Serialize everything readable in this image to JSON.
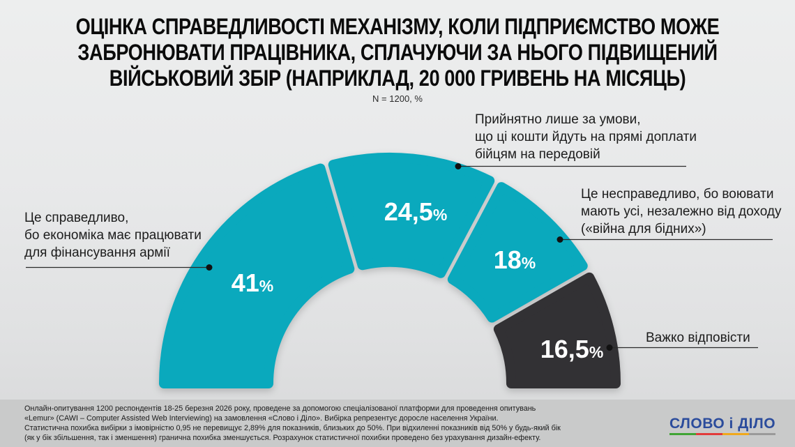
{
  "title": {
    "text": "ОЦІНКА СПРАВЕДЛИВОСТІ МЕХАНІЗМУ, КОЛИ ПІДПРИЄМСТВО МОЖЕ\nЗАБРОНЮВАТИ ПРАЦІВНИКА, СПЛАЧУЮЧИ ЗА НЬОГО ПІДВИЩЕНИЙ\nВІЙСЬКОВИЙ ЗБІР (НАПРИКЛАД, 20 000 ГРИВЕНЬ НА МІСЯЦЬ)"
  },
  "subtitle": "N = 1200, %",
  "chart_data": {
    "type": "pie",
    "variant": "semicircle-donut",
    "title": "ОЦІНКА СПРАВЕДЛИВОСТІ МЕХАНІЗМУ, КОЛИ ПІДПРИЄМСТВО МОЖЕ ЗАБРОНЮВАТИ ПРАЦІВНИКА, СПЛАЧУЮЧИ ЗА НЬОГО ПІДВИЩЕНИЙ ВІЙСЬКОВИЙ ЗБІР (НАПРИКЛАД, 20 000 ГРИВЕНЬ НА МІСЯЦЬ)",
    "sample_note": "N = 1200, %",
    "unit": "%",
    "start_angle_deg": 180,
    "end_angle_deg": 0,
    "value_label_color": "#ffffff",
    "segments": [
      {
        "label": "Це справедливо, бо економіка має працювати для фінансування армії",
        "value": 41,
        "display": "41",
        "color": "#0aa9bd"
      },
      {
        "label": "Прийнятно лише за умови, що ці кошти йдуть на прямі доплати бійцям на передовій",
        "value": 24.5,
        "display": "24,5",
        "color": "#0aa9bd"
      },
      {
        "label": "Це несправедливо, бо воювати мають усі, незалежно від доходу («війна для бідних»)",
        "value": 18,
        "display": "18",
        "color": "#0aa9bd"
      },
      {
        "label": "Важко відповісти",
        "value": 16.5,
        "display": "16,5",
        "color": "#323134"
      }
    ]
  },
  "callouts": [
    {
      "text": "Це справедливо,\nбо економіка має працювати\nдля фінансування армії"
    },
    {
      "text": "Прийнятно лише за умови,\nщо ці кошти йдуть на прямі доплати\nбійцям на передовій"
    },
    {
      "text": "Це несправедливо, бо воювати\nмають усі, незалежно від доходу\n(«війна для бідних»)"
    },
    {
      "text": "Важко відповісти"
    }
  ],
  "footer": {
    "methodology": "Онлайн-опитування 1200 респондентів 18-25 березня 2026 року, проведене за допомогою спеціалізованої платформи для проведення опитувань\n«Lemur» (CAWI – Computer Assisted Web Interviewing) на замовлення «Слово і Діло». Вибірка репрезентує доросле населення України.\nСтатистична похибка вибірки з імовірністю 0,95 не перевищує 2,89% для показників, близьких до 50%. При відхиленні показників від 50% у будь-який бік\n(як у бік збільшення, так і зменшення) гранична похибка зменшується. Розрахунок статистичної похибки проведено без урахування дизайн-ефекту."
  },
  "logo": {
    "text": "СЛОВО і ДІЛО",
    "color": "#2b4c9c",
    "underline_colors": [
      "#3fa435",
      "#e23b3b",
      "#f0a81c",
      "#9a9a9a"
    ]
  }
}
